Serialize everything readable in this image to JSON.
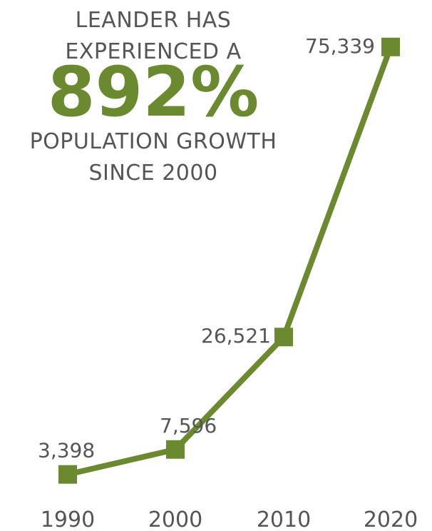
{
  "headline": {
    "line1": "LEANDER HAS",
    "line2": "EXPERIENCED A",
    "big": "892%",
    "line3": "POPULATION GROWTH",
    "line4": "SINCE 2000"
  },
  "colors": {
    "accent": "#6b8a2f",
    "text": "#555555"
  },
  "chart_data": {
    "type": "line",
    "title": "",
    "xlabel": "",
    "ylabel": "",
    "categories": [
      "1990",
      "2000",
      "2010",
      "2020"
    ],
    "values": [
      3398,
      7596,
      26521,
      75339
    ],
    "value_labels": [
      "3,398",
      "7,596",
      "26,521",
      "75,339"
    ],
    "ylim": [
      0,
      80000
    ],
    "grid": false,
    "legend": "none",
    "marker": "square"
  }
}
